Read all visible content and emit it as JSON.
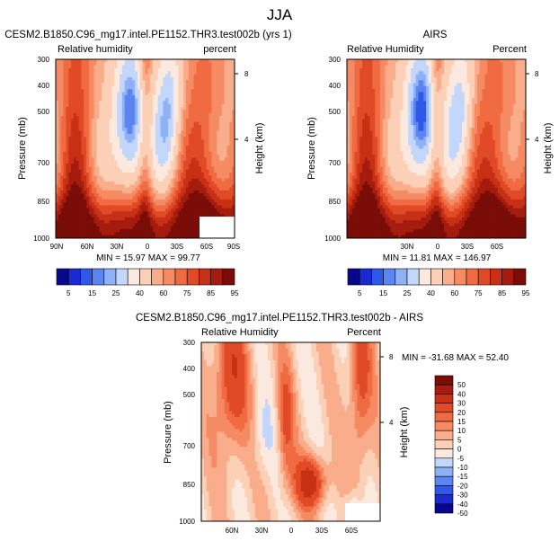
{
  "figure": {
    "season_title": "JJA",
    "colors": {
      "dry": [
        "#08088e",
        "#1a2ad0",
        "#2f58e8",
        "#5b85f0",
        "#8eb1f7",
        "#c3d6fb"
      ],
      "neutral": "#fbe9df",
      "wet": [
        "#fbd0b6",
        "#f9ad8a",
        "#f68a62",
        "#f06a42",
        "#e14a26",
        "#c83015",
        "#a51c0f",
        "#7a0d08"
      ]
    }
  },
  "chart_data": [
    {
      "type": "heatmap",
      "title": "CESM2.B1850.C96_mg17.intel.PE1152.THR3.test002b (yrs 1)",
      "left_label": "Relative humidity",
      "right_label": "percent",
      "ylabel": "Pressure (mb)",
      "y2label": "Height (km)",
      "y_ticks": [
        "300",
        "400",
        "500",
        "700",
        "850",
        "1000"
      ],
      "y2_ticks": [
        "8",
        "4"
      ],
      "x_ticks": [
        "90N",
        "60N",
        "30N",
        "0",
        "30S",
        "60S",
        "90S"
      ],
      "stats": "MIN = 15.97   MAX = 99.77",
      "colorbar_labels": [
        "5",
        "15",
        "25",
        "40",
        "60",
        "75",
        "85",
        "95"
      ],
      "features": {
        "dry_lat": 15,
        "dry_min": 16,
        "ncore_lat": -25,
        "ncore_min": 38,
        "wet_levels": [
          92,
          96
        ]
      }
    },
    {
      "type": "heatmap",
      "title": "AIRS",
      "left_label": "Relative Humidity",
      "right_label": "Percent",
      "ylabel": "Pressure (mb)",
      "y2label": "Height (km)",
      "y_ticks": [
        "300",
        "400",
        "500",
        "700",
        "850",
        "1000"
      ],
      "y2_ticks": [
        "8",
        "4"
      ],
      "x_ticks": [
        "30N",
        "0",
        "30S",
        "60S"
      ],
      "stats": "MIN = 11.81   MAX = 146.97",
      "colorbar_labels": [
        "5",
        "15",
        "25",
        "40",
        "60",
        "75",
        "85",
        "95"
      ],
      "features": {
        "dry_lat": 15,
        "dry_min": 12,
        "ncore_lat": -25,
        "ncore_min": 42,
        "wet_levels": [
          90,
          97
        ]
      }
    },
    {
      "type": "heatmap",
      "title": "CESM2.B1850.C96_mg17.intel.PE1152.THR3.test002b - AIRS",
      "left_label": "Relative Humidity",
      "right_label": "Percent",
      "ylabel": "Pressure (mb)",
      "y2label": "Height (km)",
      "y_ticks": [
        "300",
        "400",
        "500",
        "700",
        "850",
        "1000"
      ],
      "y2_ticks": [
        "8",
        "4"
      ],
      "x_ticks": [
        "60N",
        "30N",
        "0",
        "30S",
        "60S"
      ],
      "stats": "MIN = -31.68   MAX = 52.40",
      "colorbar_labels": [
        "50",
        "40",
        "30",
        "20",
        "15",
        "10",
        "5",
        "0",
        "-5",
        "-10",
        "-15",
        "-20",
        "-30",
        "-40",
        "-50"
      ]
    }
  ]
}
